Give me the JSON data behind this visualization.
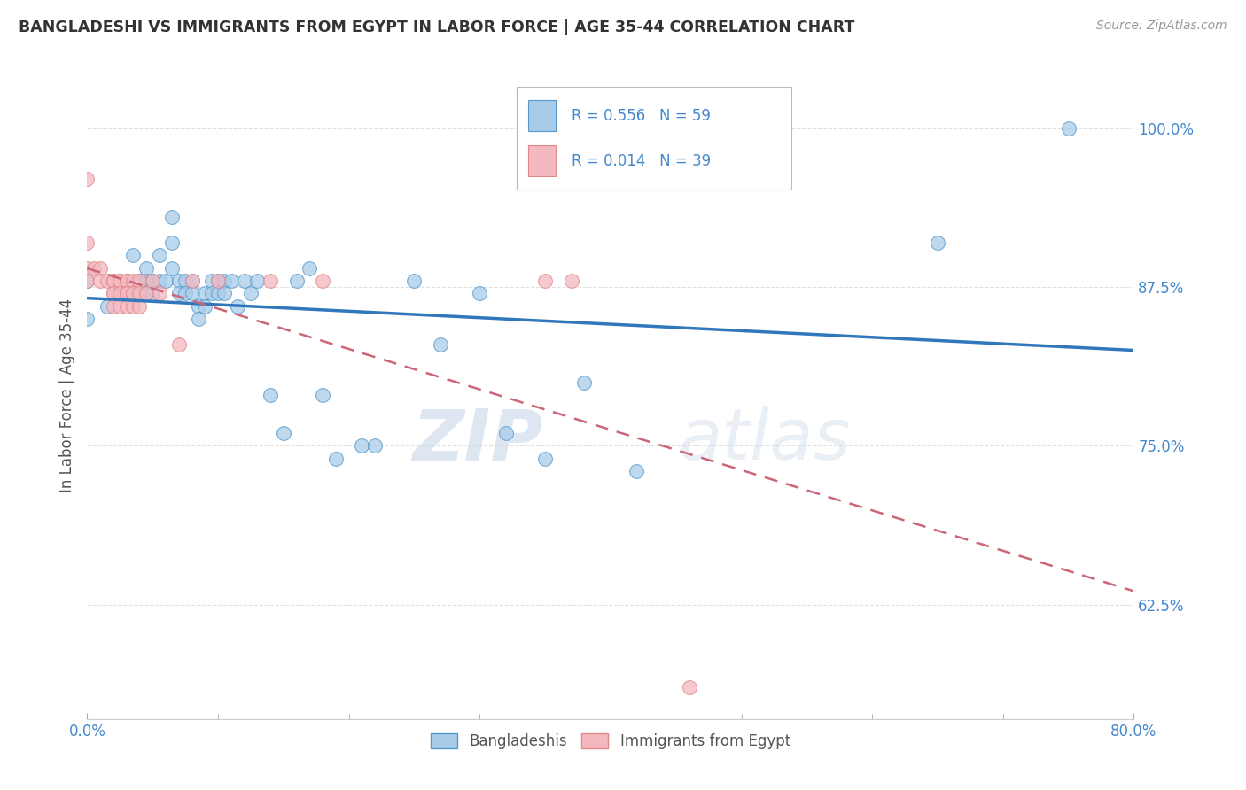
{
  "title": "BANGLADESHI VS IMMIGRANTS FROM EGYPT IN LABOR FORCE | AGE 35-44 CORRELATION CHART",
  "source": "Source: ZipAtlas.com",
  "ylabel": "In Labor Force | Age 35-44",
  "xmin": 0.0,
  "xmax": 0.8,
  "ymin": 0.535,
  "ymax": 1.045,
  "yticks": [
    0.625,
    0.75,
    0.875,
    1.0
  ],
  "ytick_labels": [
    "62.5%",
    "75.0%",
    "87.5%",
    "100.0%"
  ],
  "xtick_positions": [
    0.0,
    0.8
  ],
  "xtick_labels": [
    "0.0%",
    "80.0%"
  ],
  "blue_R": 0.556,
  "blue_N": 59,
  "pink_R": 0.014,
  "pink_N": 39,
  "blue_color": "#a8cce8",
  "pink_color": "#f4b8c1",
  "blue_edge_color": "#5599cc",
  "pink_edge_color": "#e08888",
  "blue_line_color": "#3377bb",
  "pink_line_color": "#cc6677",
  "legend_label_blue": "Bangladeshis",
  "legend_label_pink": "Immigrants from Egypt",
  "watermark_zip": "ZIP",
  "watermark_atlas": "atlas",
  "blue_scatter_x": [
    0.0,
    0.0,
    0.015,
    0.025,
    0.03,
    0.035,
    0.035,
    0.04,
    0.04,
    0.045,
    0.045,
    0.045,
    0.05,
    0.05,
    0.05,
    0.055,
    0.055,
    0.06,
    0.065,
    0.065,
    0.065,
    0.07,
    0.07,
    0.075,
    0.075,
    0.08,
    0.08,
    0.085,
    0.085,
    0.09,
    0.09,
    0.095,
    0.095,
    0.1,
    0.1,
    0.105,
    0.105,
    0.11,
    0.115,
    0.12,
    0.125,
    0.13,
    0.14,
    0.15,
    0.16,
    0.17,
    0.18,
    0.19,
    0.21,
    0.22,
    0.25,
    0.27,
    0.3,
    0.32,
    0.35,
    0.38,
    0.42,
    0.65,
    0.75
  ],
  "blue_scatter_y": [
    0.85,
    0.88,
    0.86,
    0.87,
    0.88,
    0.9,
    0.87,
    0.88,
    0.87,
    0.89,
    0.88,
    0.87,
    0.88,
    0.88,
    0.87,
    0.9,
    0.88,
    0.88,
    0.93,
    0.91,
    0.89,
    0.88,
    0.87,
    0.88,
    0.87,
    0.88,
    0.87,
    0.86,
    0.85,
    0.87,
    0.86,
    0.88,
    0.87,
    0.88,
    0.87,
    0.88,
    0.87,
    0.88,
    0.86,
    0.88,
    0.87,
    0.88,
    0.79,
    0.76,
    0.88,
    0.89,
    0.79,
    0.74,
    0.75,
    0.75,
    0.88,
    0.83,
    0.87,
    0.76,
    0.74,
    0.8,
    0.73,
    0.91,
    1.0
  ],
  "pink_scatter_x": [
    0.0,
    0.0,
    0.0,
    0.0,
    0.005,
    0.01,
    0.01,
    0.015,
    0.02,
    0.02,
    0.02,
    0.02,
    0.02,
    0.025,
    0.025,
    0.025,
    0.025,
    0.03,
    0.03,
    0.03,
    0.03,
    0.03,
    0.035,
    0.035,
    0.035,
    0.04,
    0.04,
    0.04,
    0.045,
    0.05,
    0.055,
    0.07,
    0.08,
    0.1,
    0.14,
    0.18,
    0.35,
    0.37,
    0.46
  ],
  "pink_scatter_y": [
    0.96,
    0.91,
    0.89,
    0.88,
    0.89,
    0.89,
    0.88,
    0.88,
    0.88,
    0.88,
    0.87,
    0.87,
    0.86,
    0.88,
    0.88,
    0.87,
    0.86,
    0.88,
    0.88,
    0.87,
    0.87,
    0.86,
    0.88,
    0.87,
    0.86,
    0.88,
    0.87,
    0.86,
    0.87,
    0.88,
    0.87,
    0.83,
    0.88,
    0.88,
    0.88,
    0.88,
    0.88,
    0.88,
    0.56
  ],
  "background_color": "#ffffff",
  "grid_color": "#dddddd",
  "title_color": "#333333",
  "axis_label_color": "#555555",
  "tick_color": "#4488cc",
  "stat_color": "#4488cc"
}
